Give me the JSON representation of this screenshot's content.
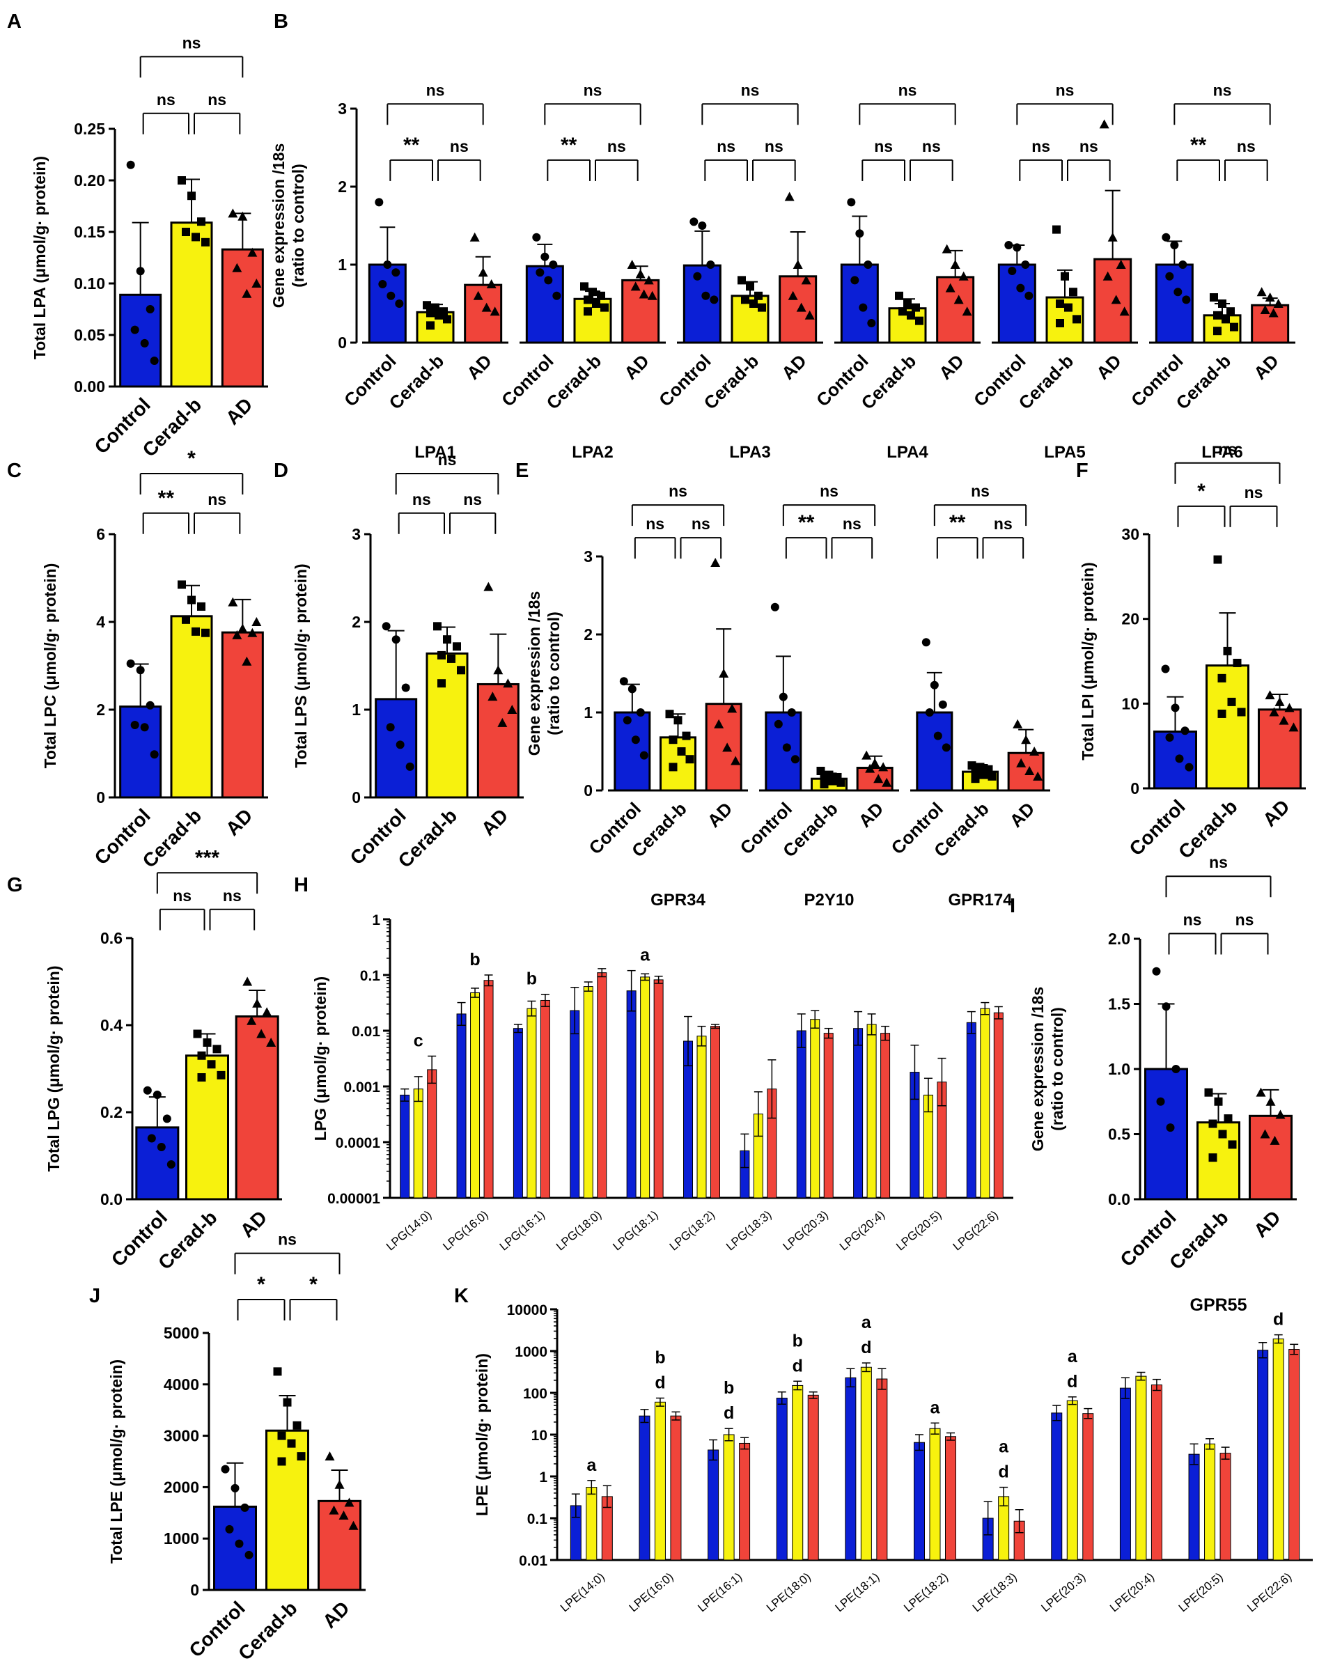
{
  "colors": {
    "control": "#0b1fd6",
    "cerad": "#f7f20e",
    "ad": "#f0443a",
    "ink": "#000000"
  },
  "groups": [
    "Control",
    "Cerad-b",
    "AD"
  ],
  "chart_data": [
    {
      "panel": "A",
      "type": "bar",
      "ylabel": "Total LPA (μmol/g· protein)",
      "ylim": [
        0,
        0.25
      ],
      "yticks": [
        "0.00",
        "0.05",
        "0.10",
        "0.15",
        "0.20",
        "0.25"
      ],
      "categories": [
        "Control",
        "Cerad-b",
        "AD"
      ],
      "values": [
        0.089,
        0.159,
        0.133
      ],
      "errors": [
        0.07,
        0.042,
        0.035
      ],
      "points": [
        [
          0.215,
          0.112,
          0.075,
          0.055,
          0.042,
          0.025
        ],
        [
          0.2,
          0.185,
          0.16,
          0.15,
          0.145,
          0.14
        ],
        [
          0.168,
          0.165,
          0.13,
          0.115,
          0.09,
          0.1
        ]
      ],
      "sig": [
        "ns",
        "ns",
        "ns"
      ]
    },
    {
      "panel": "C",
      "type": "bar",
      "ylabel": "Total LPC (μmol/g· protein)",
      "ylim": [
        0,
        6
      ],
      "yticks": [
        "0",
        "2",
        "4",
        "6"
      ],
      "categories": [
        "Control",
        "Cerad-b",
        "AD"
      ],
      "values": [
        2.07,
        4.13,
        3.76
      ],
      "errors": [
        0.97,
        0.7,
        0.75
      ],
      "points": [
        [
          3.05,
          2.9,
          2.1,
          1.65,
          1.6,
          0.98
        ],
        [
          4.85,
          4.5,
          4.35,
          4.05,
          3.78,
          3.75
        ],
        [
          4.45,
          3.85,
          3.75,
          3.7,
          3.1,
          4.0
        ]
      ],
      "sig": [
        "**",
        "ns",
        "*"
      ]
    },
    {
      "panel": "D",
      "type": "bar",
      "ylabel": "Total LPS (μmol/g· protein)",
      "ylim": [
        0,
        3
      ],
      "yticks": [
        "0",
        "1",
        "2",
        "3"
      ],
      "categories": [
        "Control",
        "Cerad-b",
        "AD"
      ],
      "values": [
        1.12,
        1.64,
        1.29
      ],
      "errors": [
        0.78,
        0.3,
        0.57
      ],
      "points": [
        [
          1.95,
          1.8,
          1.25,
          0.8,
          0.6,
          0.35
        ],
        [
          1.95,
          1.8,
          1.72,
          1.62,
          1.58,
          1.45,
          1.3
        ],
        [
          2.4,
          1.45,
          1.3,
          1.15,
          0.85,
          1.0
        ]
      ],
      "sig": [
        "ns",
        "ns",
        "ns"
      ]
    },
    {
      "panel": "F",
      "type": "bar",
      "ylabel": "Total LPI (μmol/g· protein)",
      "ylim": [
        0,
        30
      ],
      "yticks": [
        "0",
        "10",
        "20",
        "30"
      ],
      "categories": [
        "Control",
        "Cerad-b",
        "AD"
      ],
      "values": [
        6.7,
        14.5,
        9.3
      ],
      "errors": [
        4.1,
        6.2,
        1.8
      ],
      "points": [
        [
          14.1,
          9.5,
          6.8,
          6.0,
          3.5,
          2.5
        ],
        [
          27.0,
          16.2,
          14.8,
          13.0,
          10.2,
          9.0,
          8.8
        ],
        [
          11.0,
          10.2,
          9.5,
          9.0,
          8.0,
          7.2
        ]
      ],
      "sig": [
        "*",
        "ns",
        "ns"
      ]
    },
    {
      "panel": "G",
      "type": "bar",
      "ylabel": "Total LPG (μmol/g· protein)",
      "ylim": [
        0,
        0.6
      ],
      "yticks": [
        "0.0",
        "0.2",
        "0.4",
        "0.6"
      ],
      "categories": [
        "Control",
        "Cerad-b",
        "AD"
      ],
      "values": [
        0.165,
        0.33,
        0.42
      ],
      "errors": [
        0.07,
        0.05,
        0.06
      ],
      "points": [
        [
          0.25,
          0.24,
          0.185,
          0.14,
          0.12,
          0.08
        ],
        [
          0.38,
          0.36,
          0.345,
          0.33,
          0.31,
          0.285,
          0.28
        ],
        [
          0.5,
          0.45,
          0.43,
          0.41,
          0.38,
          0.36
        ]
      ],
      "sig": [
        "ns",
        "ns",
        "***"
      ]
    },
    {
      "panel": "I",
      "type": "bar",
      "ylabel": "Gene expression /18s\n(ratio to control)",
      "title": "GPR55",
      "ylim": [
        0,
        2
      ],
      "yticks": [
        "0.0",
        "0.5",
        "1.0",
        "1.5",
        "2.0"
      ],
      "categories": [
        "Control",
        "Cerad-b",
        "AD"
      ],
      "values": [
        1.0,
        0.59,
        0.64
      ],
      "errors": [
        0.5,
        0.22,
        0.2
      ],
      "points": [
        [
          1.75,
          1.48,
          1.0,
          0.75,
          0.55
        ],
        [
          0.82,
          0.75,
          0.62,
          0.58,
          0.5,
          0.42,
          0.32
        ],
        [
          0.82,
          0.75,
          0.65,
          0.5,
          0.45
        ]
      ],
      "sig": [
        "ns",
        "ns",
        "ns"
      ]
    },
    {
      "panel": "J",
      "type": "bar",
      "ylabel": "Total LPE (μmol/g· protein)",
      "ylim": [
        0,
        5000
      ],
      "yticks": [
        "0",
        "1000",
        "2000",
        "3000",
        "4000",
        "5000"
      ],
      "categories": [
        "Control",
        "Cerad-b",
        "AD"
      ],
      "values": [
        1620,
        3100,
        1730
      ],
      "errors": [
        850,
        680,
        600
      ],
      "points": [
        [
          2350,
          1980,
          1600,
          1180,
          900,
          680
        ],
        [
          4250,
          3650,
          3200,
          3000,
          2850,
          2600,
          2500
        ],
        [
          2600,
          2050,
          1700,
          1550,
          1450,
          1250
        ]
      ],
      "sig": [
        "*",
        "*",
        "ns"
      ]
    },
    {
      "panel": "B",
      "type": "bar",
      "ylabel": "Gene expression /18s\n(ratio to control)",
      "ylim": [
        0,
        3
      ],
      "yticks": [
        "0",
        "1",
        "2",
        "3"
      ],
      "genes": [
        {
          "name": "LPA1",
          "values": [
            1.0,
            0.39,
            0.74
          ],
          "errors": [
            0.48,
            0.1,
            0.36
          ],
          "sig": [
            "**",
            "ns",
            "ns"
          ],
          "points": [
            [
              1.8,
              1.0,
              0.9,
              0.75,
              0.6,
              0.5
            ],
            [
              0.48,
              0.45,
              0.4,
              0.38,
              0.35,
              0.3,
              0.22
            ],
            [
              1.35,
              0.9,
              0.75,
              0.6,
              0.45,
              0.4
            ]
          ]
        },
        {
          "name": "LPA2",
          "values": [
            0.98,
            0.56,
            0.8
          ],
          "errors": [
            0.28,
            0.1,
            0.18
          ],
          "sig": [
            "**",
            "ns",
            "ns"
          ],
          "points": [
            [
              1.35,
              1.1,
              1.0,
              0.9,
              0.8,
              0.6
            ],
            [
              0.72,
              0.65,
              0.6,
              0.55,
              0.5,
              0.45,
              0.4
            ],
            [
              1.0,
              0.88,
              0.8,
              0.72,
              0.62,
              0.6
            ]
          ]
        },
        {
          "name": "LPA3",
          "values": [
            0.99,
            0.6,
            0.85
          ],
          "errors": [
            0.44,
            0.18,
            0.57
          ],
          "sig": [
            "ns",
            "ns",
            "ns"
          ],
          "points": [
            [
              1.55,
              1.5,
              1.0,
              0.85,
              0.6,
              0.55
            ],
            [
              0.8,
              0.72,
              0.6,
              0.55,
              0.5,
              0.45
            ],
            [
              1.87,
              1.0,
              0.8,
              0.6,
              0.45,
              0.35
            ]
          ]
        },
        {
          "name": "LPA4",
          "values": [
            1.0,
            0.44,
            0.84
          ],
          "errors": [
            0.62,
            0.12,
            0.34
          ],
          "sig": [
            "ns",
            "ns",
            "ns"
          ],
          "points": [
            [
              1.8,
              1.4,
              1.0,
              0.8,
              0.45,
              0.25
            ],
            [
              0.6,
              0.5,
              0.45,
              0.4,
              0.35,
              0.28
            ],
            [
              1.2,
              1.0,
              0.85,
              0.7,
              0.55,
              0.4
            ]
          ]
        },
        {
          "name": "LPA5",
          "values": [
            1.0,
            0.58,
            1.07
          ],
          "errors": [
            0.25,
            0.35,
            0.88
          ],
          "sig": [
            "ns",
            "ns",
            "ns"
          ],
          "points": [
            [
              1.25,
              1.22,
              1.0,
              0.92,
              0.7,
              0.6
            ],
            [
              1.45,
              0.85,
              0.65,
              0.5,
              0.45,
              0.3,
              0.25
            ],
            [
              2.8,
              1.35,
              1.0,
              0.85,
              0.55,
              0.4
            ]
          ]
        },
        {
          "name": "LPA6",
          "values": [
            1.0,
            0.35,
            0.48
          ],
          "errors": [
            0.3,
            0.15,
            0.09
          ],
          "sig": [
            "**",
            "ns",
            "ns"
          ],
          "points": [
            [
              1.35,
              1.25,
              1.0,
              0.85,
              0.65,
              0.55
            ],
            [
              0.58,
              0.5,
              0.4,
              0.35,
              0.3,
              0.2,
              0.15
            ],
            [
              0.65,
              0.58,
              0.5,
              0.42,
              0.38
            ]
          ]
        }
      ]
    },
    {
      "panel": "E",
      "type": "bar",
      "ylabel": "Gene expression /18s\n(ratio to control)",
      "ylim": [
        0,
        3
      ],
      "yticks": [
        "0",
        "1",
        "2",
        "3"
      ],
      "genes": [
        {
          "name": "GPR34",
          "values": [
            1.0,
            0.68,
            1.11
          ],
          "errors": [
            0.36,
            0.3,
            0.96
          ],
          "sig": [
            "ns",
            "ns",
            "ns"
          ],
          "points": [
            [
              1.4,
              1.3,
              1.0,
              0.9,
              0.65,
              0.45
            ],
            [
              0.98,
              0.9,
              0.7,
              0.65,
              0.5,
              0.4,
              0.3
            ],
            [
              2.92,
              1.5,
              1.05,
              0.85,
              0.55,
              0.38
            ]
          ]
        },
        {
          "name": "P2Y10",
          "values": [
            1.0,
            0.15,
            0.29
          ],
          "errors": [
            0.72,
            0.07,
            0.15
          ],
          "sig": [
            "**",
            "ns",
            "ns"
          ],
          "points": [
            [
              2.35,
              1.2,
              1.0,
              0.85,
              0.55,
              0.4
            ],
            [
              0.25,
              0.2,
              0.17,
              0.15,
              0.12,
              0.1,
              0.08
            ],
            [
              0.45,
              0.35,
              0.3,
              0.28,
              0.15,
              0.1
            ]
          ]
        },
        {
          "name": "GPR174",
          "values": [
            1.0,
            0.24,
            0.48
          ],
          "errors": [
            0.51,
            0.09,
            0.3
          ],
          "sig": [
            "**",
            "ns",
            "ns"
          ],
          "points": [
            [
              1.9,
              1.35,
              1.1,
              1.0,
              0.7,
              0.55
            ],
            [
              0.32,
              0.3,
              0.27,
              0.22,
              0.2,
              0.18,
              0.15
            ],
            [
              0.85,
              0.65,
              0.5,
              0.35,
              0.25,
              0.18
            ]
          ]
        }
      ]
    },
    {
      "panel": "H",
      "type": "bar",
      "scale": "log",
      "ylabel": "LPG (μmol/g· protein)",
      "ylim": [
        1e-05,
        1
      ],
      "yticks": [
        "0.00001",
        "0.0001",
        "0.001",
        "0.01",
        "0.1",
        "1"
      ],
      "categories": [
        "LPG(14:0)",
        "LPG(16:0)",
        "LPG(16:1)",
        "LPG(18:0)",
        "LPG(18:1)",
        "LPG(18:2)",
        "LPG(18:3)",
        "LPG(20:3)",
        "LPG(20:4)",
        "LPG(20:5)",
        "LPG(22:6)"
      ],
      "series": [
        {
          "name": "Control",
          "values": [
            0.0007,
            0.02,
            0.011,
            0.023,
            0.052,
            0.0065,
            7e-05,
            0.01,
            0.011,
            0.0018,
            0.014
          ],
          "upper": [
            0.0009,
            0.032,
            0.013,
            0.06,
            0.12,
            0.018,
            0.00014,
            0.02,
            0.022,
            0.0055,
            0.022
          ]
        },
        {
          "name": "Cerad-b",
          "values": [
            0.0009,
            0.048,
            0.025,
            0.062,
            0.092,
            0.008,
            0.00032,
            0.016,
            0.013,
            0.0007,
            0.025
          ],
          "upper": [
            0.0015,
            0.058,
            0.034,
            0.075,
            0.105,
            0.012,
            0.0008,
            0.023,
            0.02,
            0.0014,
            0.032
          ]
        },
        {
          "name": "AD",
          "values": [
            0.002,
            0.08,
            0.035,
            0.11,
            0.082,
            0.012,
            0.0009,
            0.009,
            0.009,
            0.0012,
            0.021
          ],
          "upper": [
            0.0035,
            0.1,
            0.045,
            0.13,
            0.095,
            0.013,
            0.003,
            0.011,
            0.012,
            0.0032,
            0.027
          ]
        }
      ],
      "annotations": [
        [
          "",
          "c"
        ],
        [
          "",
          "b"
        ],
        [
          "",
          "b"
        ],
        [
          "",
          ""
        ],
        [
          "",
          "a"
        ],
        [
          "",
          ""
        ],
        [
          "",
          ""
        ],
        [
          "",
          ""
        ],
        [
          "",
          ""
        ],
        [
          "",
          ""
        ],
        [
          "",
          ""
        ]
      ]
    },
    {
      "panel": "K",
      "type": "bar",
      "scale": "log",
      "ylabel": "LPE (μmol/g· protein)",
      "ylim": [
        0.01,
        10000
      ],
      "yticks": [
        "0.01",
        "0.1",
        "1",
        "10",
        "100",
        "1000",
        "10000"
      ],
      "categories": [
        "LPE(14:0)",
        "LPE(16:0)",
        "LPE(16:1)",
        "LPE(18:0)",
        "LPE(18:1)",
        "LPE(18:2)",
        "LPE(18:3)",
        "LPE(20:3)",
        "LPE(20:4)",
        "LPE(20:5)",
        "LPE(22:6)"
      ],
      "series": [
        {
          "name": "Control",
          "values": [
            0.2,
            28,
            4.3,
            75,
            230,
            6.5,
            0.1,
            33,
            130,
            3.4,
            1050
          ],
          "upper": [
            0.38,
            40,
            7.5,
            105,
            380,
            10,
            0.25,
            50,
            230,
            6,
            1600
          ]
        },
        {
          "name": "Cerad-b",
          "values": [
            0.55,
            60,
            10,
            150,
            410,
            14,
            0.33,
            65,
            250,
            6,
            1950
          ],
          "upper": [
            0.8,
            75,
            14,
            190,
            520,
            19,
            0.55,
            80,
            310,
            8,
            2450
          ]
        },
        {
          "name": "AD",
          "values": [
            0.33,
            28,
            6.2,
            88,
            215,
            9,
            0.085,
            32,
            155,
            3.6,
            1100
          ],
          "upper": [
            0.6,
            35,
            8.5,
            105,
            380,
            11,
            0.16,
            42,
            210,
            5,
            1450
          ]
        }
      ],
      "annotations": [
        [
          "",
          "a"
        ],
        [
          "b",
          "d"
        ],
        [
          "b",
          "d"
        ],
        [
          "b",
          "d"
        ],
        [
          "a",
          "d"
        ],
        [
          "",
          "a"
        ],
        [
          "a",
          "d"
        ],
        [
          "a",
          "d"
        ],
        [
          "",
          ""
        ],
        [
          "",
          ""
        ],
        [
          "",
          "d"
        ]
      ]
    }
  ],
  "panel_letters": [
    "A",
    "B",
    "C",
    "D",
    "E",
    "F",
    "G",
    "H",
    "I",
    "J",
    "K"
  ]
}
